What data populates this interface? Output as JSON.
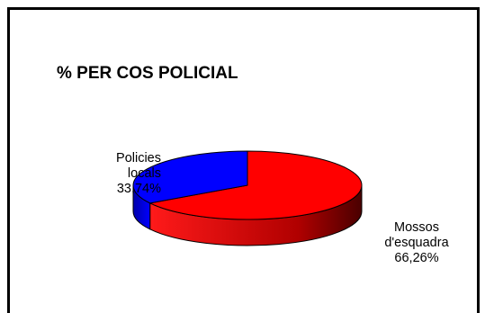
{
  "chart_data": {
    "type": "pie",
    "title": "% PER COS POLICIAL",
    "slices": [
      {
        "name": "Mossos d'esquadra",
        "value": 66.26,
        "label_lines": [
          "Mossos",
          "d'esquadra",
          "66,26%"
        ],
        "color": "#ff0000",
        "side_color": "#8b0000"
      },
      {
        "name": "Policies locals",
        "value": 33.74,
        "label_lines": [
          "Policies",
          "locals",
          "33,74%"
        ],
        "color": "#0000ff",
        "side_color": "#00008b"
      }
    ],
    "legend": "none",
    "style": "3d"
  }
}
